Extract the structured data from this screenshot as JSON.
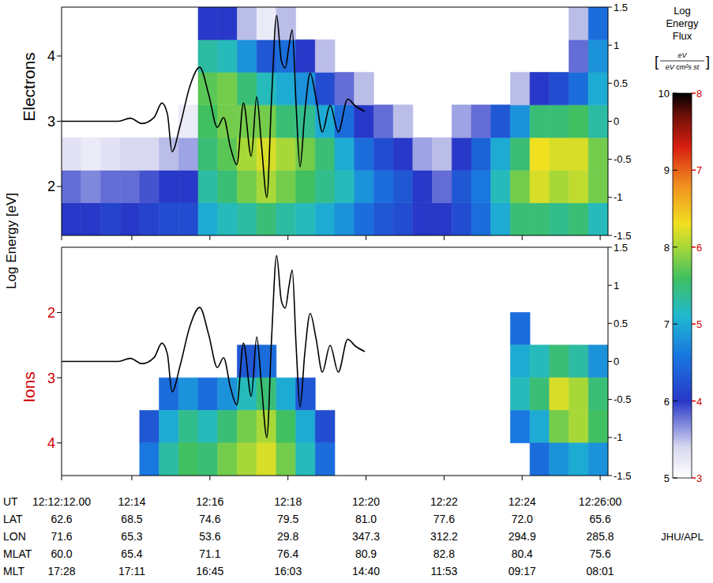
{
  "chart_data": [
    {
      "type": "heatmap",
      "title": "Electrons",
      "tick_labels": "y",
      "xlim": [
        12.2,
        26.2
      ],
      "xticks": [
        12.2,
        14,
        16,
        18,
        20,
        22,
        24,
        26
      ],
      "ylim": [
        1.25,
        4.75
      ],
      "yticks": [
        2,
        3,
        4
      ],
      "y2lim": [
        -1.5,
        1.5
      ],
      "y2ticks": [
        -1.5,
        -1,
        -0.5,
        0,
        0.5,
        1,
        1.5
      ],
      "x_bins": [
        12.2,
        12.7,
        13.2,
        13.7,
        14.2,
        14.7,
        15.2,
        15.7,
        16.2,
        16.7,
        17.2,
        17.7,
        18.2,
        18.7,
        19.2,
        19.7,
        20.2,
        20.7,
        21.2,
        21.7,
        22.2,
        22.7,
        23.2,
        23.7,
        24.2,
        24.7,
        25.2,
        25.7,
        26.2
      ],
      "y_bins": [
        1.25,
        1.75,
        2.25,
        2.75,
        3.25,
        3.75,
        4.25,
        4.75
      ],
      "cells": [
        [
          6.0,
          5.8,
          5.3,
          null,
          null,
          null,
          null
        ],
        [
          6.0,
          5.7,
          5.2,
          null,
          null,
          null,
          null
        ],
        [
          6.1,
          5.8,
          5.3,
          null,
          null,
          null,
          null
        ],
        [
          6.0,
          5.8,
          5.4,
          null,
          null,
          null,
          null
        ],
        [
          6.1,
          5.9,
          5.4,
          null,
          null,
          null,
          null
        ],
        [
          6.2,
          6.0,
          5.5,
          null,
          null,
          null,
          null
        ],
        [
          6.2,
          6.0,
          5.6,
          5.2,
          null,
          null,
          null
        ],
        [
          7.0,
          7.3,
          7.5,
          7.6,
          7.7,
          7.3,
          6.0
        ],
        [
          7.2,
          7.5,
          7.7,
          7.8,
          7.8,
          7.2,
          6.0
        ],
        [
          7.3,
          7.8,
          8.0,
          7.8,
          7.5,
          6.8,
          5.5
        ],
        [
          7.5,
          8.0,
          8.2,
          7.8,
          7.2,
          6.3,
          5.2
        ],
        [
          7.3,
          7.8,
          8.0,
          7.5,
          7.0,
          6.5,
          5.5
        ],
        [
          7.2,
          7.6,
          7.8,
          7.4,
          6.8,
          6.0,
          null
        ],
        [
          7.0,
          7.4,
          7.5,
          7.0,
          6.2,
          5.5,
          null
        ],
        [
          6.8,
          7.2,
          7.0,
          6.5,
          5.8,
          null,
          null
        ],
        [
          6.5,
          6.8,
          6.5,
          6.0,
          5.5,
          null,
          null
        ],
        [
          6.3,
          6.5,
          6.2,
          5.8,
          null,
          null,
          null
        ],
        [
          6.2,
          6.3,
          6.0,
          5.5,
          null,
          null,
          null
        ],
        [
          6.0,
          6.0,
          5.6,
          null,
          null,
          null,
          null
        ],
        [
          6.0,
          5.8,
          5.5,
          null,
          null,
          null,
          null
        ],
        [
          6.2,
          6.3,
          6.0,
          5.6,
          null,
          null,
          null
        ],
        [
          6.5,
          6.6,
          6.4,
          5.8,
          null,
          null,
          null
        ],
        [
          7.0,
          7.2,
          7.0,
          6.3,
          null,
          null,
          null
        ],
        [
          7.5,
          7.8,
          7.5,
          6.8,
          5.5,
          null,
          null
        ],
        [
          7.5,
          8.2,
          8.3,
          7.5,
          6.0,
          null,
          null
        ],
        [
          7.4,
          8.0,
          8.2,
          7.5,
          6.2,
          null,
          null
        ],
        [
          7.5,
          8.1,
          8.2,
          7.6,
          6.5,
          5.8,
          5.5
        ],
        [
          7.2,
          7.8,
          7.8,
          7.3,
          7.0,
          6.8,
          6.5
        ]
      ],
      "colorbar": {
        "range": [
          5,
          10
        ],
        "ticks": [
          5,
          6,
          7,
          8,
          9,
          10
        ]
      },
      "series": [
        {
          "type": "line",
          "color": "#000000",
          "axis": "y2",
          "x": [
            12.2,
            13.66,
            13.96,
            14.26,
            14.57,
            14.77,
            14.91,
            15.03,
            15.24,
            15.48,
            15.74,
            15.97,
            16.19,
            16.35,
            16.53,
            16.69,
            16.86,
            17.06,
            17.2,
            17.32,
            17.46,
            17.58,
            17.71,
            17.83,
            17.93,
            18.03,
            18.11,
            18.21,
            18.31,
            18.43,
            18.57,
            18.72,
            18.88,
            19.08,
            19.29,
            19.53,
            19.73,
            19.97
          ],
          "values": [
            0,
            0,
            0.04,
            -0.03,
            0.05,
            0.24,
            0.1,
            -0.4,
            -0.05,
            0.45,
            0.71,
            0.35,
            -0.08,
            0.05,
            -0.35,
            -0.57,
            0.24,
            -0.46,
            0.32,
            -0.3,
            -1.0,
            0.3,
            1.39,
            0.8,
            0.7,
            1.0,
            1.2,
            0.2,
            -0.6,
            0.1,
            0.63,
            0.3,
            -0.14,
            0.21,
            -0.14,
            0.29,
            0.2,
            0.13
          ]
        }
      ]
    },
    {
      "type": "heatmap",
      "title": "Ions",
      "tick_labels": "y",
      "xlim": [
        12.2,
        26.2
      ],
      "xticks": [
        12.2,
        14,
        16,
        18,
        20,
        22,
        24,
        26
      ],
      "ylim": [
        4.5,
        1.0
      ],
      "yticks": [
        2,
        3,
        4
      ],
      "y2lim": [
        -1.5,
        1.5
      ],
      "y2ticks": [
        -1.5,
        -1,
        -0.5,
        0,
        0.5,
        1,
        1.5
      ],
      "x_bins": [
        12.2,
        12.7,
        13.2,
        13.7,
        14.2,
        14.7,
        15.2,
        15.7,
        16.2,
        16.7,
        17.2,
        17.7,
        18.2,
        18.7,
        19.2,
        19.7,
        20.2,
        20.7,
        21.2,
        21.7,
        22.2,
        22.7,
        23.2,
        23.7,
        24.2,
        24.7,
        25.2,
        25.7,
        26.2
      ],
      "y_bins": [
        1.0,
        1.5,
        2.0,
        2.5,
        3.0,
        3.5,
        4.0,
        4.5
      ],
      "cells": [
        [
          null,
          null,
          null,
          null,
          null,
          null,
          null
        ],
        [
          null,
          null,
          null,
          null,
          null,
          null,
          null
        ],
        [
          null,
          null,
          null,
          null,
          null,
          null,
          null
        ],
        [
          null,
          null,
          null,
          null,
          null,
          null,
          null
        ],
        [
          null,
          null,
          null,
          null,
          null,
          4.3,
          4.6
        ],
        [
          null,
          null,
          null,
          null,
          4.5,
          5.0,
          5.3
        ],
        [
          null,
          null,
          null,
          null,
          4.8,
          5.4,
          5.6
        ],
        [
          null,
          null,
          null,
          null,
          4.5,
          5.2,
          5.5
        ],
        [
          null,
          null,
          null,
          null,
          4.8,
          5.5,
          5.8
        ],
        [
          null,
          null,
          null,
          4.3,
          5.2,
          5.8,
          6.0
        ],
        [
          null,
          null,
          null,
          4.5,
          5.5,
          6.0,
          6.2
        ],
        [
          null,
          null,
          null,
          null,
          5.0,
          5.6,
          5.8
        ],
        [
          null,
          null,
          null,
          null,
          4.3,
          5.0,
          5.2
        ],
        [
          null,
          null,
          null,
          null,
          null,
          4.2,
          4.5
        ],
        [
          null,
          null,
          null,
          null,
          null,
          null,
          null
        ],
        [
          null,
          null,
          null,
          null,
          null,
          null,
          null
        ],
        [
          null,
          null,
          null,
          null,
          null,
          null,
          null
        ],
        [
          null,
          null,
          null,
          null,
          null,
          null,
          null
        ],
        [
          null,
          null,
          null,
          null,
          null,
          null,
          null
        ],
        [
          null,
          null,
          null,
          null,
          null,
          null,
          null
        ],
        [
          null,
          null,
          null,
          null,
          null,
          null,
          null
        ],
        [
          null,
          null,
          null,
          null,
          null,
          null,
          null
        ],
        [
          null,
          null,
          null,
          null,
          null,
          null,
          null
        ],
        [
          null,
          null,
          4.5,
          5.0,
          5.2,
          4.6,
          null
        ],
        [
          null,
          null,
          null,
          5.2,
          5.5,
          5.0,
          4.5
        ],
        [
          null,
          null,
          null,
          5.5,
          6.2,
          5.8,
          4.8
        ],
        [
          null,
          null,
          null,
          5.3,
          6.0,
          6.0,
          5.0
        ],
        [
          null,
          null,
          null,
          4.8,
          5.5,
          5.6,
          4.8
        ]
      ],
      "colorbar": {
        "range": [
          3,
          8
        ],
        "ticks": [
          3,
          4,
          5,
          6,
          7,
          8
        ]
      },
      "series": [
        {
          "type": "line",
          "color": "#000000",
          "axis": "y2",
          "x": [
            12.2,
            13.66,
            13.96,
            14.26,
            14.57,
            14.77,
            14.91,
            15.03,
            15.24,
            15.48,
            15.74,
            15.97,
            16.19,
            16.35,
            16.53,
            16.69,
            16.86,
            17.06,
            17.2,
            17.32,
            17.46,
            17.58,
            17.71,
            17.83,
            17.93,
            18.03,
            18.11,
            18.21,
            18.31,
            18.43,
            18.57,
            18.72,
            18.88,
            19.08,
            19.29,
            19.53,
            19.73,
            19.97
          ],
          "values": [
            0,
            0,
            0.04,
            -0.03,
            0.05,
            0.24,
            0.1,
            -0.4,
            -0.05,
            0.45,
            0.71,
            0.35,
            -0.08,
            0.05,
            -0.35,
            -0.57,
            0.24,
            -0.46,
            0.32,
            -0.3,
            -1.0,
            0.3,
            1.39,
            0.8,
            0.7,
            1.0,
            1.2,
            0.2,
            -0.6,
            0.1,
            0.63,
            0.3,
            -0.14,
            0.21,
            -0.14,
            0.29,
            0.2,
            0.13
          ]
        }
      ]
    }
  ],
  "ylabel": "Log Energy [eV]",
  "colorbar_title": "Log Energy Flux",
  "colorbar_units": {
    "numerator": "eV",
    "denominator": "eV cm²s st"
  },
  "table": {
    "rows": [
      {
        "label": "UT",
        "values": [
          "12:12:12.00",
          "12:14",
          "12:16",
          "12:18",
          "12:20",
          "12:22",
          "12:24",
          "12:26:00"
        ]
      },
      {
        "label": "LAT",
        "values": [
          "62.6",
          "68.5",
          "74.6",
          "79.5",
          "81.0",
          "77.6",
          "72.0",
          "65.6"
        ]
      },
      {
        "label": "LON",
        "values": [
          "71.6",
          "65.3",
          "53.6",
          "29.8",
          "347.3",
          "312.2",
          "294.9",
          "285.8"
        ]
      },
      {
        "label": "MLAT",
        "values": [
          "60.0",
          "65.4",
          "71.1",
          "76.4",
          "80.9",
          "82.8",
          "80.4",
          "75.6"
        ]
      },
      {
        "label": "MLT",
        "values": [
          "17:28",
          "17:11",
          "16:45",
          "16:03",
          "14:40",
          "11:53",
          "09:17",
          "08:01"
        ]
      }
    ]
  },
  "credit": "JHU/APL"
}
